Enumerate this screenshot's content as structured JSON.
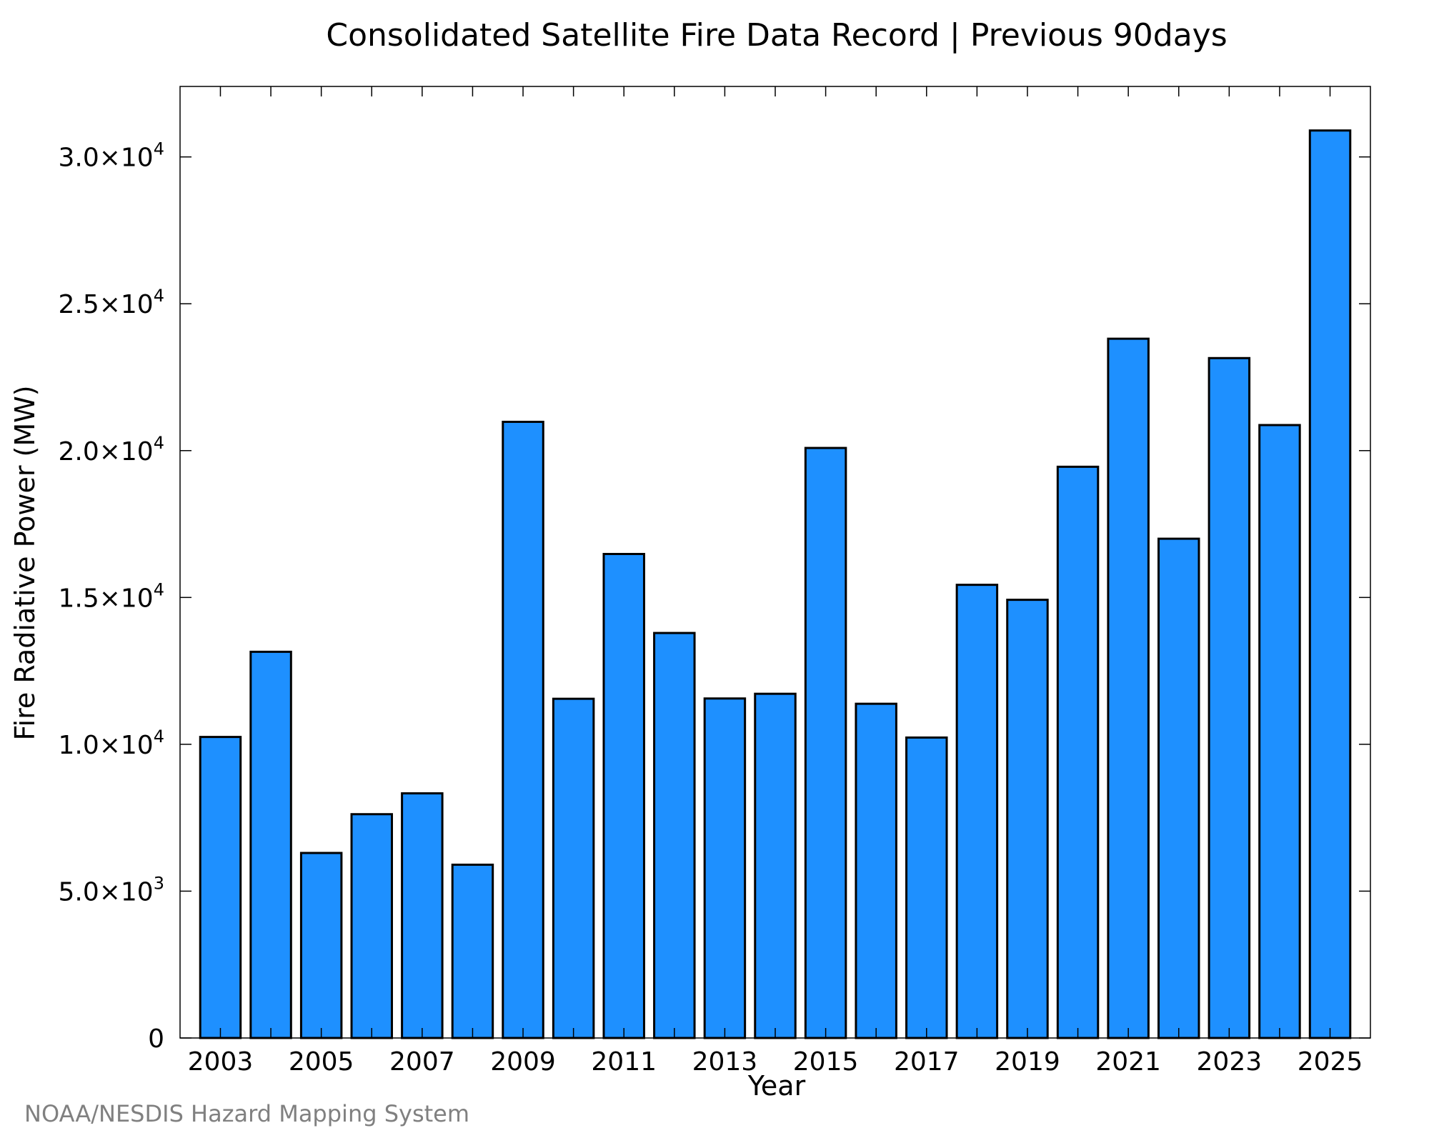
{
  "chart_data": {
    "type": "bar",
    "title": "Consolidated Satellite Fire Data Record | Previous 90days",
    "xlabel": "Year",
    "ylabel": "Fire Radiative Power (MW)",
    "categories": [
      "2003",
      "2004",
      "2005",
      "2006",
      "2007",
      "2008",
      "2009",
      "2010",
      "2011",
      "2012",
      "2013",
      "2014",
      "2015",
      "2016",
      "2017",
      "2018",
      "2019",
      "2020",
      "2021",
      "2022",
      "2023",
      "2024",
      "2025"
    ],
    "values": [
      10250,
      13150,
      6300,
      7620,
      8330,
      5900,
      20980,
      11550,
      16480,
      13790,
      11560,
      11720,
      20090,
      11380,
      10230,
      15430,
      14920,
      19450,
      23810,
      17000,
      23150,
      20870,
      30900
    ],
    "x_tick_labels": [
      "2003",
      "2005",
      "2007",
      "2009",
      "2011",
      "2013",
      "2015",
      "2017",
      "2019",
      "2021",
      "2023",
      "2025"
    ],
    "y_ticks": [
      {
        "value": 0,
        "label": "0",
        "exp": ""
      },
      {
        "value": 5000,
        "label": "5.0×10",
        "exp": "3"
      },
      {
        "value": 10000,
        "label": "1.0×10",
        "exp": "4"
      },
      {
        "value": 15000,
        "label": "1.5×10",
        "exp": "4"
      },
      {
        "value": 20000,
        "label": "2.0×10",
        "exp": "4"
      },
      {
        "value": 25000,
        "label": "2.5×10",
        "exp": "4"
      },
      {
        "value": 30000,
        "label": "3.0×10",
        "exp": "4"
      }
    ],
    "ylim": [
      0,
      32400
    ],
    "bar_color": "#1e90ff",
    "edge_color": "#000000",
    "grid": false,
    "legend": "none"
  },
  "footer": {
    "credit": "NOAA/NESDIS Hazard Mapping System"
  }
}
